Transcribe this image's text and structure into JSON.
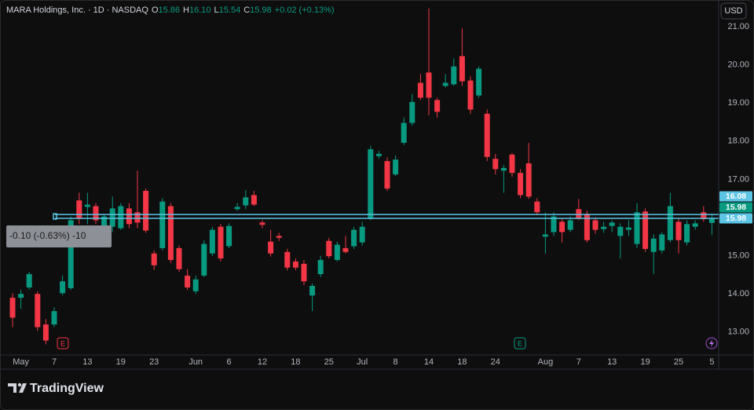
{
  "chart_data": {
    "type": "candlestick",
    "symbol": "MARA Holdings, Inc. · 1D · NASDAQ",
    "ohlc_legend": [
      {
        "key": "O",
        "value": "15.86"
      },
      {
        "key": "H",
        "value": "16.10"
      },
      {
        "key": "L",
        "value": "15.54"
      },
      {
        "key": "C",
        "value": "15.98"
      }
    ],
    "change": "+0.02 (+0.13%)",
    "currency": "USD",
    "categories": [
      null,
      "May",
      null,
      null,
      null,
      "7",
      null,
      null,
      null,
      "13",
      null,
      null,
      null,
      "19",
      null,
      null,
      null,
      "23",
      null,
      null,
      null,
      null,
      "Jun",
      null,
      null,
      null,
      "6",
      null,
      null,
      null,
      "12",
      null,
      null,
      null,
      "18",
      null,
      null,
      null,
      "25",
      null,
      null,
      null,
      "Jul",
      null,
      null,
      null,
      "8",
      null,
      null,
      null,
      "14",
      null,
      null,
      null,
      "18",
      null,
      null,
      null,
      "24",
      null,
      null,
      null,
      null,
      null,
      "Aug",
      null,
      null,
      null,
      "7",
      null,
      null,
      null,
      "13",
      null,
      null,
      null,
      "19",
      null,
      null,
      null,
      "25",
      null,
      null,
      null,
      "5"
    ],
    "open": [
      13.9,
      13.9,
      14.17,
      14.0,
      13.2,
      13.2,
      14.02,
      14.15,
      16.45,
      16.28,
      16.3,
      15.72,
      15.76,
      15.72,
      16.24,
      16.14,
      16.7,
      15.06,
      15.2,
      16.3,
      15.2,
      14.48,
      14.07,
      14.48,
      15.06,
      15.76,
      15.25,
      16.22,
      16.32,
      16.59,
      15.87,
      15.37,
      15.52,
      15.1,
      14.85,
      14.79,
      13.96,
      14.52,
      15.39,
      14.89,
      15.2,
      15.25,
      15.35,
      15.97,
      17.61,
      17.48,
      17.13,
      17.96,
      18.48,
      19.53,
      19.8,
      19.08,
      19.45,
      19.49,
      20.23,
      19.59,
      19.2,
      18.72,
      17.54,
      17.23,
      17.65,
      17.17,
      17.42,
      16.42,
      15.5,
      15.62,
      15.89,
      15.68,
      16.22,
      16.1,
      15.93,
      15.7,
      15.78,
      15.52,
      15.68,
      15.31,
      16.16,
      15.1,
      15.14,
      15.41,
      15.89,
      15.35,
      15.76,
      16.14,
      15.86
    ],
    "high": [
      14.02,
      14.11,
      14.58,
      14.07,
      13.34,
      13.65,
      14.48,
      16.03,
      16.65,
      16.65,
      16.38,
      16.1,
      16.55,
      16.38,
      16.38,
      17.23,
      16.76,
      15.14,
      16.51,
      16.38,
      15.27,
      14.65,
      14.48,
      15.41,
      15.76,
      15.83,
      15.85,
      16.38,
      16.72,
      16.7,
      15.93,
      15.68,
      15.6,
      15.18,
      14.93,
      14.89,
      14.27,
      15.0,
      15.47,
      15.37,
      15.52,
      15.76,
      15.89,
      17.88,
      17.75,
      17.58,
      17.63,
      18.62,
      19.24,
      19.76,
      21.48,
      19.14,
      19.76,
      20.17,
      20.96,
      19.7,
      19.96,
      18.83,
      17.67,
      17.38,
      17.69,
      17.27,
      17.96,
      16.51,
      16.14,
      16.14,
      15.97,
      16.03,
      16.49,
      16.18,
      16.01,
      15.89,
      15.93,
      15.85,
      15.93,
      16.38,
      16.24,
      15.56,
      15.62,
      16.65,
      15.97,
      15.93,
      15.93,
      16.3,
      16.1
    ],
    "low": [
      13.13,
      13.61,
      14.11,
      13.03,
      12.68,
      13.13,
      13.96,
      14.11,
      15.83,
      15.83,
      15.83,
      15.6,
      15.62,
      15.68,
      15.72,
      15.72,
      15.6,
      14.63,
      15.14,
      14.81,
      14.58,
      14.11,
      14.0,
      14.44,
      14.99,
      14.85,
      15.2,
      16.18,
      16.22,
      16.3,
      15.72,
      14.98,
      15.39,
      14.62,
      14.62,
      14.23,
      13.55,
      14.44,
      14.93,
      14.85,
      15.06,
      15.18,
      15.27,
      15.93,
      17.54,
      16.7,
      17.09,
      17.9,
      18.41,
      19.08,
      18.68,
      18.62,
      19.41,
      19.45,
      19.45,
      18.72,
      19.14,
      17.48,
      17.13,
      16.65,
      17.07,
      16.51,
      16.49,
      16.07,
      15.06,
      15.52,
      15.35,
      15.62,
      15.93,
      15.35,
      15.58,
      15.6,
      15.62,
      14.93,
      15.52,
      15.2,
      15.1,
      14.52,
      15.06,
      15.35,
      15.06,
      15.27,
      15.68,
      15.89,
      15.54
    ],
    "close": [
      13.38,
      14.0,
      14.52,
      13.13,
      12.78,
      13.55,
      14.33,
      15.93,
      15.97,
      16.34,
      15.93,
      16.03,
      16.24,
      16.3,
      15.83,
      15.87,
      15.66,
      14.75,
      16.42,
      14.89,
      14.65,
      14.17,
      14.38,
      15.31,
      15.68,
      14.93,
      15.78,
      16.28,
      16.53,
      16.34,
      15.81,
      15.06,
      15.47,
      14.69,
      14.69,
      14.33,
      14.21,
      14.89,
      14.99,
      15.29,
      15.1,
      15.68,
      15.76,
      17.79,
      17.67,
      16.76,
      17.52,
      18.48,
      19.03,
      19.14,
      19.14,
      18.77,
      19.53,
      19.96,
      19.57,
      18.83,
      19.9,
      17.59,
      17.27,
      17.3,
      17.17,
      16.59,
      16.55,
      16.14,
      15.56,
      16.03,
      15.62,
      15.93,
      15.99,
      15.41,
      15.68,
      15.76,
      15.87,
      15.76,
      15.74,
      16.14,
      15.18,
      15.45,
      15.56,
      16.3,
      15.41,
      15.83,
      15.85,
      15.96,
      15.98
    ],
    "up_color": "#089981",
    "down_color": "#f23645",
    "ylim": [
      12.4,
      21.7
    ],
    "yticks": [
      {
        "value": 13,
        "label": "13.00"
      },
      {
        "value": 14,
        "label": "14.00"
      },
      {
        "value": 15,
        "label": "15.00"
      },
      {
        "value": 16,
        "label": "16.00"
      },
      {
        "value": 17,
        "label": "17.00"
      },
      {
        "value": 18,
        "label": "18.00"
      },
      {
        "value": 19,
        "label": "19.00"
      },
      {
        "value": 20,
        "label": "20.00"
      },
      {
        "value": 21,
        "label": "21.00"
      }
    ],
    "grid": false,
    "price_lines": [
      {
        "value": 16.08,
        "label": "16.08"
      },
      {
        "value": 15.98,
        "label": "15.98"
      }
    ],
    "price_line_color": "#5cc4e4",
    "last_price": {
      "value": 15.98,
      "label": "15.98"
    },
    "measure": "-0.10 (-0.63%) -10",
    "events": [
      "E",
      "E"
    ]
  },
  "branding": "TradingView"
}
